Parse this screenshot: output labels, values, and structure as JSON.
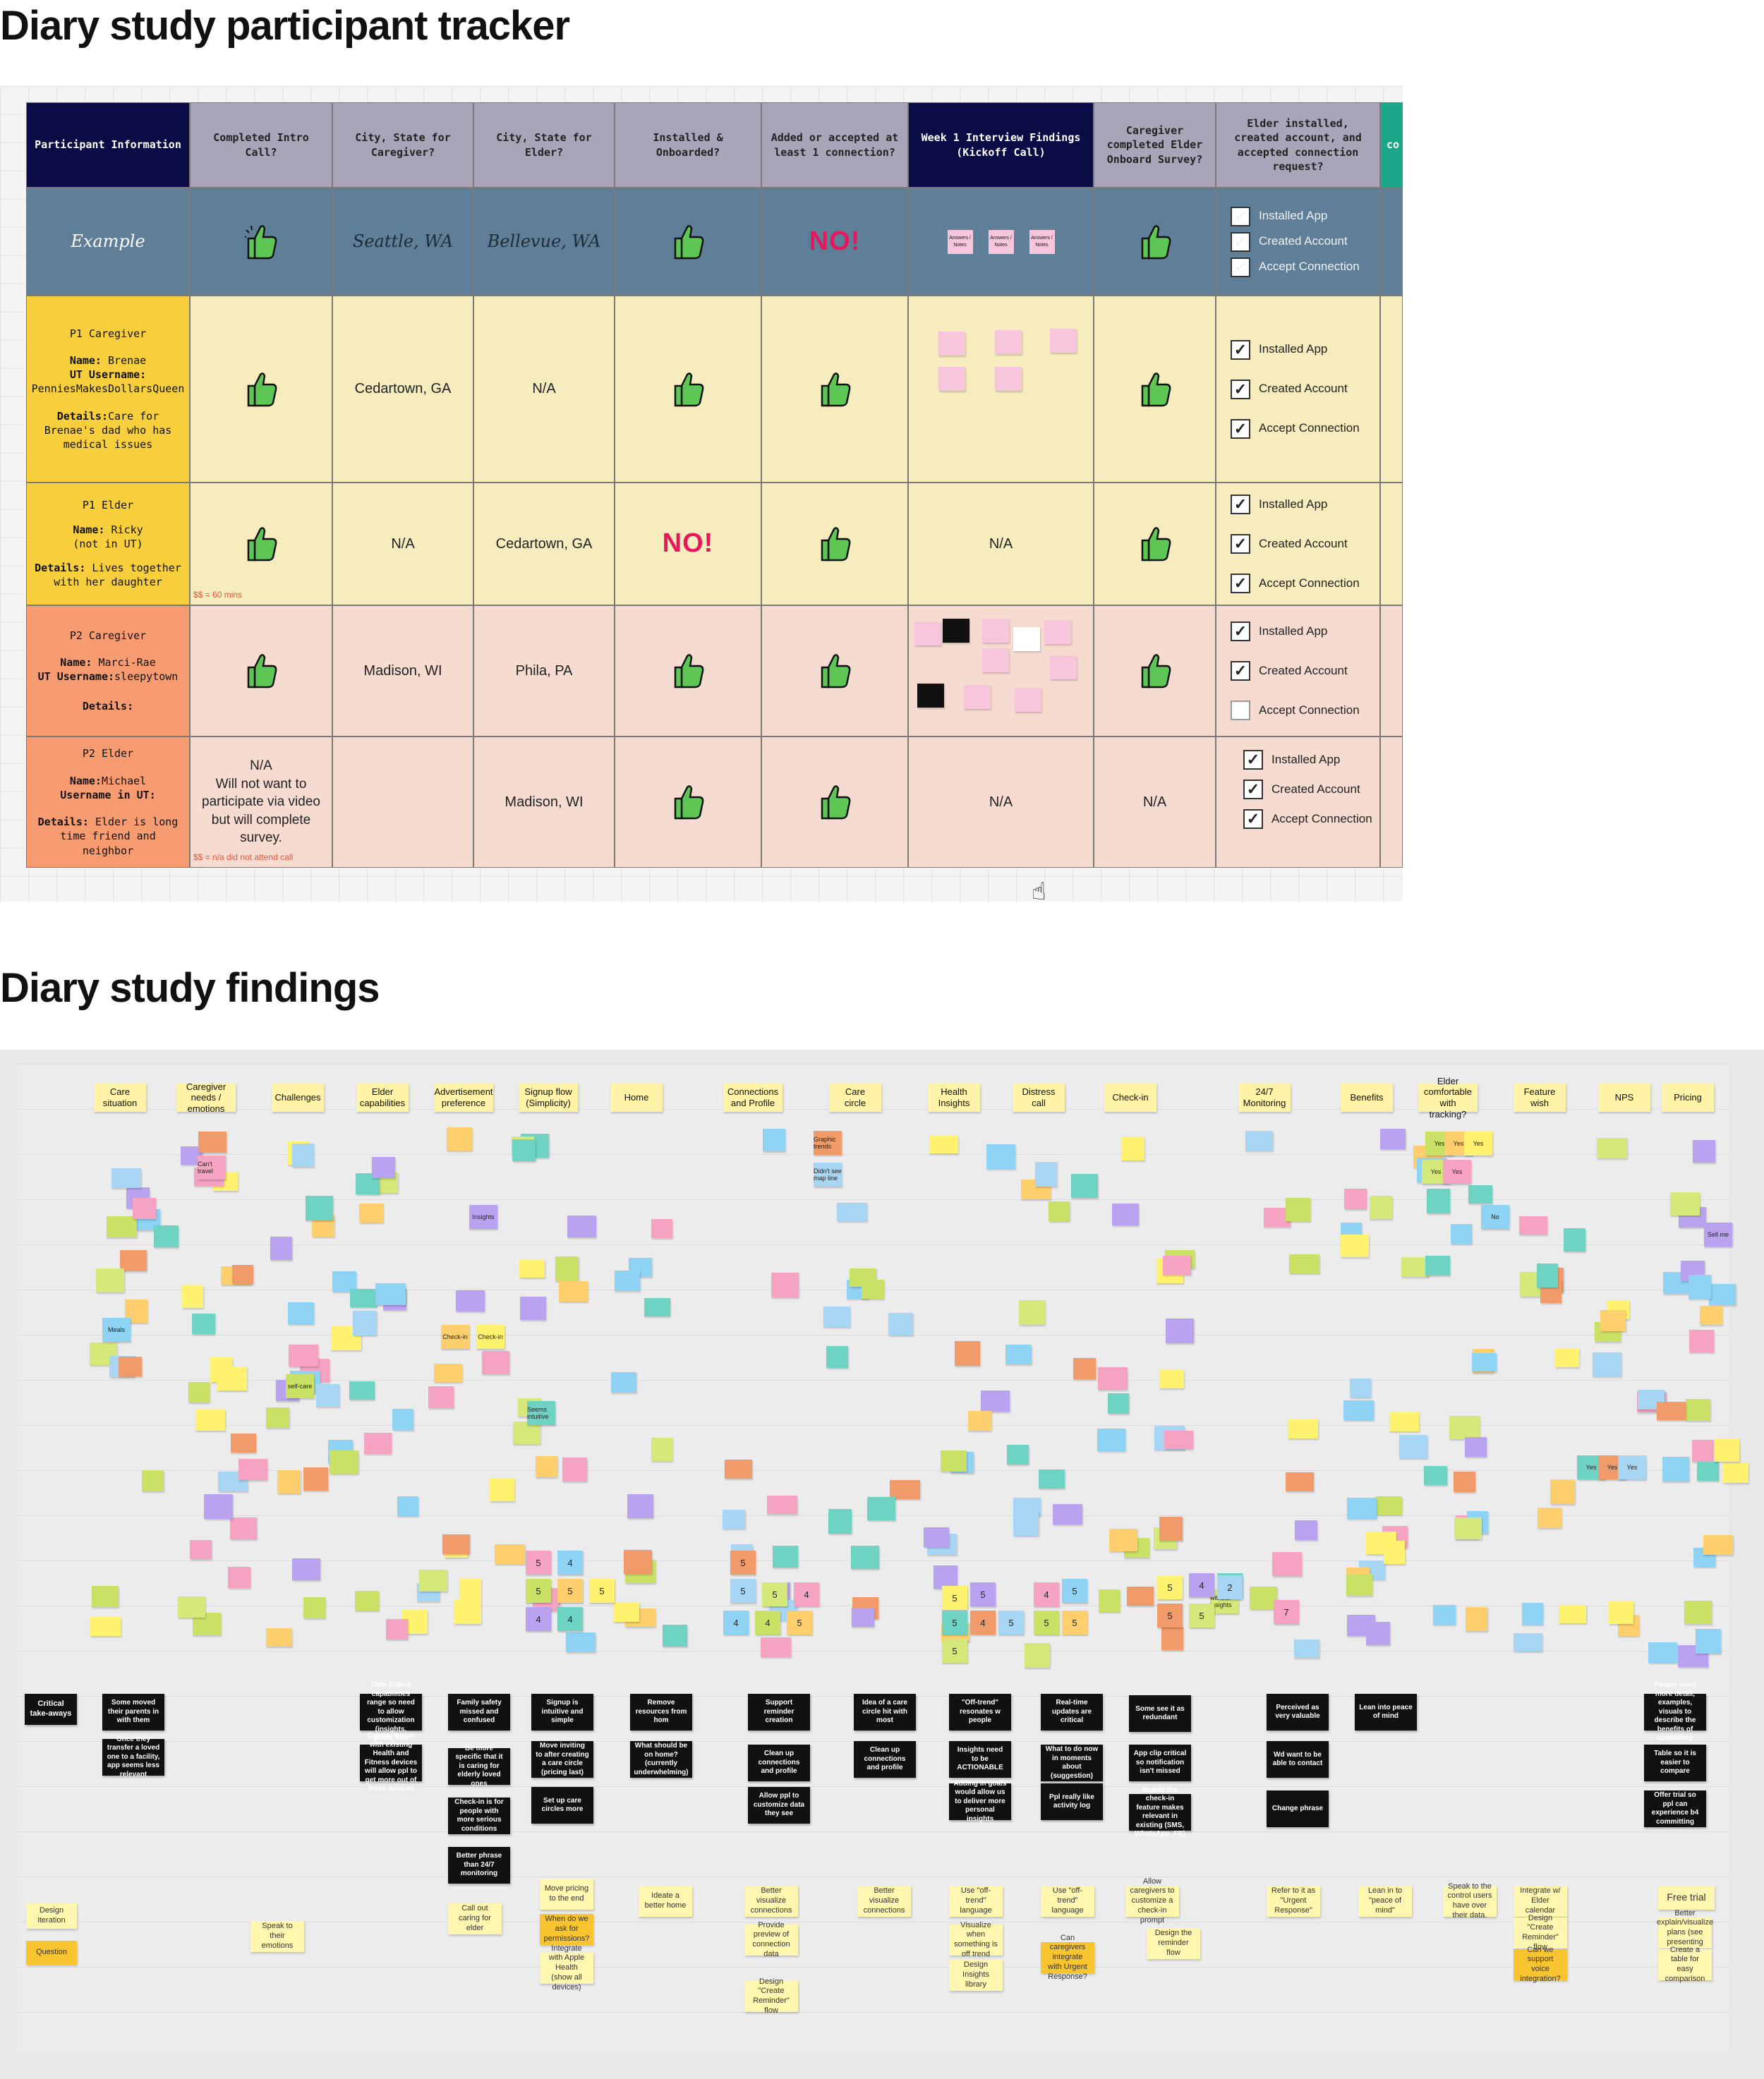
{
  "titles": {
    "tracker": "Diary study participant tracker",
    "findings": "Diary study findings"
  },
  "headers": [
    "Participant Information",
    "Completed Intro Call?",
    "City, State for Caregiver?",
    "City, State for Elder?",
    "Installed & Onboarded?",
    "Added or accepted at least 1 connection?",
    "Week 1 Interview Findings (Kickoff Call)",
    "Caregiver completed Elder Onboard Survey?",
    "Elder installed, created account, and accepted connection request?",
    "co"
  ],
  "example": {
    "label": "Example",
    "city_caregiver": "Seattle, WA",
    "city_elder": "Bellevue, WA",
    "no": "NO!",
    "note": "Answers / Notes"
  },
  "checks": {
    "installed": "Installed App",
    "created": "Created Account",
    "accept": "Accept Connection"
  },
  "p1c": {
    "title": "P1 Caregiver",
    "name_label": "Name:",
    "name": "Brenae",
    "user_label": "UT Username:",
    "username": "PenniesMakesDollarsQueen",
    "details_label": "Details:",
    "details": "Care for Brenae's dad who has medical issues",
    "city_c": "Cedartown, GA",
    "city_e": "N/A"
  },
  "p1e": {
    "title": "P1 Elder",
    "name_label": "Name:",
    "name": "Ricky",
    "not_ut": "(not in UT)",
    "details_label": "Details:",
    "details": "Lives together with her daughter",
    "city_c": "N/A",
    "city_e": "Cedartown, GA",
    "no": "NO!",
    "findings": "N/A",
    "note": "$$ = 60 mins"
  },
  "p2c": {
    "title": "P2 Caregiver",
    "name_label": "Name:",
    "name": "Marci-Rae",
    "user_label": "UT Username:",
    "username": "sleepytown",
    "details_label": "Details:",
    "city_c": "Madison, WI",
    "city_e": "Phila, PA"
  },
  "p2e": {
    "title": "P2 Elder",
    "name_label": "Name:",
    "name": "Michael",
    "user_label": "Username in UT:",
    "details_label": "Details:",
    "details": "Elder is long time friend and neighbor",
    "intro": "N/A\nWill not want to participate via video but will complete survey.",
    "city_e": "Madison, WI",
    "findings": "N/A",
    "survey": "N/A",
    "note": "$$ = n/a did not attend call"
  },
  "findings": {
    "columns": [
      "Care situation",
      "Caregiver needs / emotions",
      "Challenges",
      "Elder capabilities",
      "Advertisement preference",
      "Signup flow (Simplicity)",
      "Home",
      "Connections and Profile",
      "Care circle",
      "Health Insights",
      "Distress call",
      "Check-in",
      "24/7 Monitoring",
      "Benefits",
      "Elder comfortable with tracking?",
      "Feature wish",
      "NPS",
      "Pricing"
    ],
    "rows": {
      "takeaways": "Critical take-aways",
      "iteration": "Design iteration",
      "question": "Question"
    },
    "takeaways": [
      "Some moved their parents in with them",
      "Once they transfer a loved one to a facility, app seems less relevant",
      "Obvi Elders capabilities range so need to allow customization (insights, goals, etc)",
      "Connecting in with existing Health and Fitness devices will allow ppl to get more out of these devices",
      "Family safety missed and confused",
      "Be more specific that it is caring for elderly loved ones",
      "Check-in is for people with more serious conditions",
      "Better phrase than 24/7 monitoring",
      "Signup is intuitive and simple",
      "Move inviting to after creating a care circle (pricing last)",
      "Set up care circles more",
      "Remove resources from hom",
      "What should be on home? (currently underwhelming)",
      "Support reminder creation",
      "Clean up connections and profile",
      "Allow ppl to customize data they see",
      "Idea of a care circle hit with most",
      "Clean up connections and profile",
      "\"Off-trend\" resonates w people",
      "Insights need to be ACTIONABLE",
      "Adding in goals would allow us to deliver more personal insights",
      "Real-time updates are critical",
      "What to do now in moments about (suggestion)",
      "Ppl really like activity log",
      "Some see it as redundant",
      "App clip critical so notification isn't missed",
      "Mobile the check-in feature makes relevant in existing (SMS, WhatsApp, FB)",
      "Perceived as very valuable",
      "Wd want to be able to contact",
      "Change phrase",
      "Lean into peace of mind",
      "People need more detail, examples, visuals to describe the benefits of upgrading",
      "Table so it is easier to compare",
      "Offer trial so ppl can experience b4 committing"
    ],
    "iterations": [
      "Speak to their emotions",
      "Call out caring for elder",
      "Move pricing to the end",
      "When do we ask for permissions?",
      "Integrate with Apple Health (show all devices)",
      "Ideate a better home",
      "Better visualize connections",
      "Provide preview of connection data",
      "Design \"Create Reminder\" flow",
      "Better visualize connections",
      "Use \"off-trend\" language",
      "Visualize when something is off trend",
      "Design Insights library",
      "Use \"off-trend\" language",
      "Can caregivers integrate with Urgent Response?",
      "Allow caregivers to customize a check-in prompt",
      "Design the reminder flow",
      "Refer to it as \"Urgent Response\"",
      "Lean in to \"peace of mind\"",
      "Speak to the control users have over their data.",
      "Integrate w/ Elder calendar",
      "Design \"Create Reminder\" flow",
      "Can we support voice integration?",
      "Free trial",
      "Better explain/visualize plans (see presenting options)",
      "Create a table for easy comparison"
    ],
    "inline_notes": [
      "Can't travel",
      "Meals",
      "self-care",
      "Check-in",
      "Check-in",
      "Insights",
      "Seems intuitive",
      "Graphic trends",
      "Didn't see map line",
      "Yes",
      "Yes",
      "No",
      "Yes",
      "Yes",
      "Yes",
      "Sell me",
      "Yes",
      "Yes",
      "Yes",
      "without insights"
    ],
    "numbers": [
      "5",
      "4",
      "5",
      "5",
      "5",
      "4",
      "4",
      "5",
      "5",
      "5",
      "4",
      "4",
      "4",
      "5",
      "5",
      "5",
      "5",
      "4",
      "5",
      "5",
      "4",
      "5",
      "5",
      "5",
      "5",
      "4",
      "5",
      "5",
      "2",
      "5",
      "7"
    ]
  },
  "colors": {
    "header_bg": "#a9a4b8",
    "dark_header": "#0b0b45",
    "example_bg": "#5f7e98",
    "yellow_row": "#f6ecbd",
    "pink_row": "#f6dbd0",
    "caregiver_cell": "#f7ce3c",
    "elder_cell": "#f79b70",
    "no_red": "#e8175d",
    "thumb_green": "#5ec655"
  },
  "icons": [
    "thumbs-up-icon",
    "checkbox-icon",
    "hand-cursor-icon"
  ]
}
